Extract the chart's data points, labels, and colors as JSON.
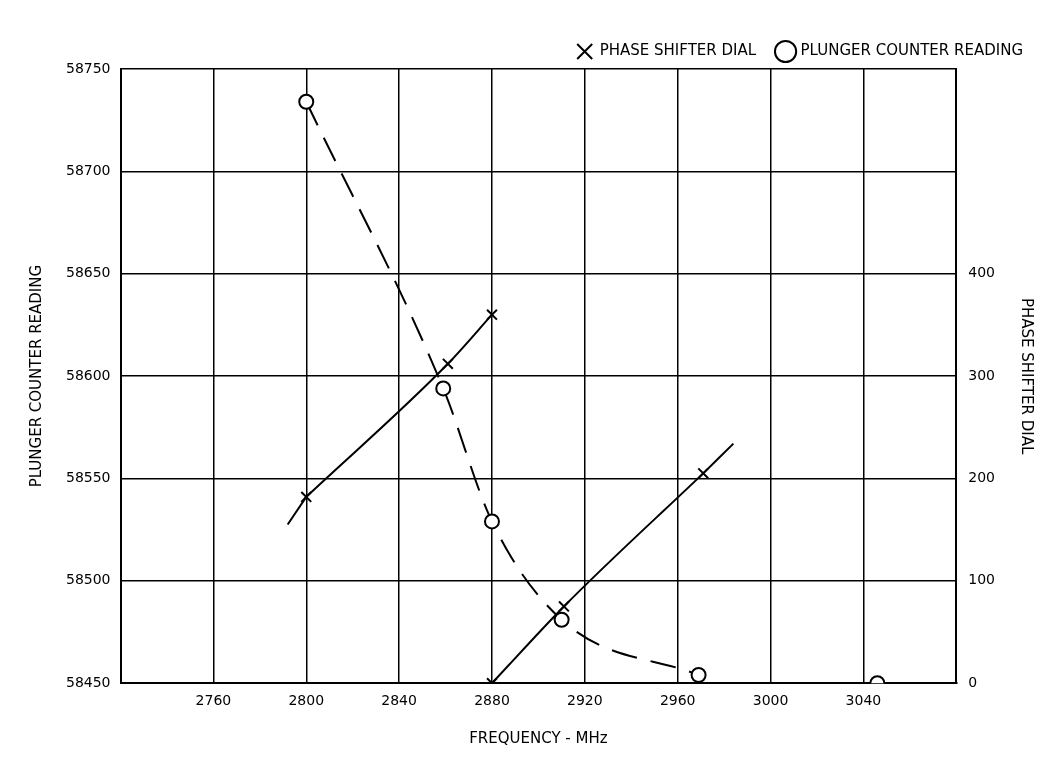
{
  "chart_data": {
    "type": "line",
    "xlabel": "FREQUENCY - MHz",
    "ylabel": "PLUNGER COUNTER READING",
    "y2label": "PHASE SHIFTER DIAL",
    "xlim": [
      2720,
      3080
    ],
    "xticks": [
      2760,
      2800,
      2840,
      2880,
      2920,
      2960,
      3000,
      3040
    ],
    "ylim": [
      58450,
      58750
    ],
    "yticks": [
      58450,
      58500,
      58550,
      58600,
      58650,
      58700,
      58750
    ],
    "y2lim": [
      0,
      600
    ],
    "y2ticks": [
      0,
      100,
      200,
      300,
      400
    ],
    "grid": true,
    "legend": "top right",
    "series": [
      {
        "name": "PHASE SHIFTER DIAL",
        "axis": "y2",
        "color": "#000000",
        "marker": "cross",
        "line_style": "solid",
        "x": [
          2800,
          2861,
          2880,
          null,
          2880,
          2911,
          2971
        ],
        "values": [
          182,
          312,
          360,
          null,
          0,
          75,
          205
        ]
      },
      {
        "axis": "y2",
        "color": "#000000",
        "marker": "none",
        "line_style": "solid",
        "x": [
          2792,
          2800,
          null,
          2971,
          2984
        ],
        "values": [
          155,
          182,
          null,
          205,
          234
        ]
      },
      {
        "name": "PLUNGER COUNTER READING",
        "color": "#000000",
        "marker": "circle",
        "line_style": "dashed",
        "x": [
          2800,
          2859,
          2880,
          2910,
          2969
        ],
        "values": [
          58734,
          58594,
          58529,
          58481,
          58454
        ]
      },
      {
        "color": "#000000",
        "marker": "circle",
        "line_style": "dashed",
        "x": [
          3046
        ],
        "values": [
          58450
        ]
      }
    ]
  }
}
